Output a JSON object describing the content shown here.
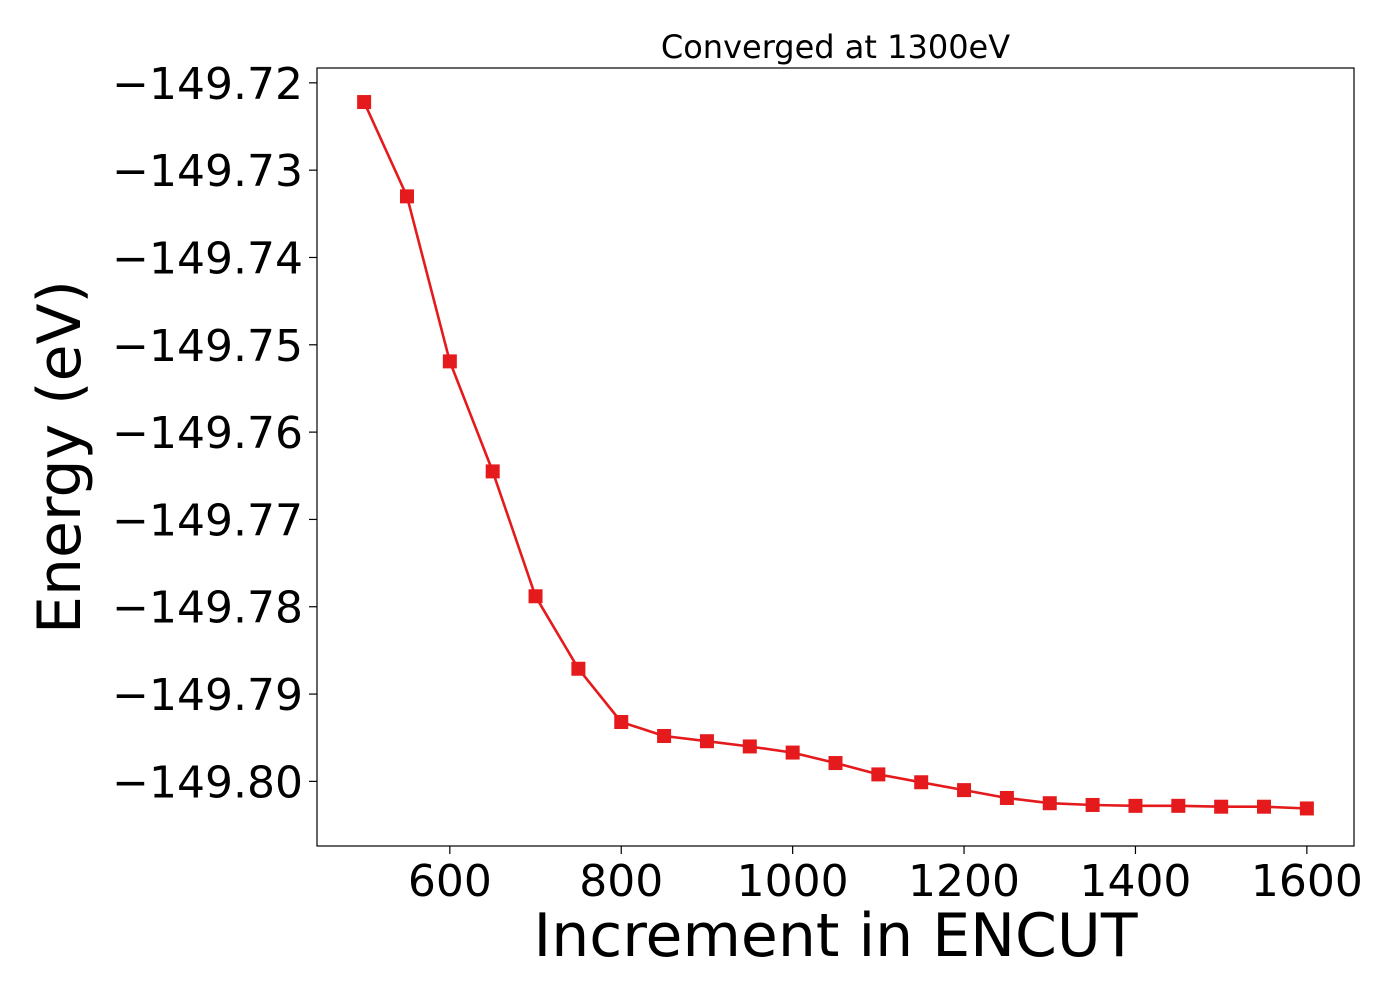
{
  "chart_data": {
    "type": "line",
    "title": "Converged at 1300eV",
    "xlabel": "Increment in ENCUT",
    "ylabel": "Energy (eV)",
    "xlim": [
      445,
      1655
    ],
    "ylim": [
      -149.8074,
      -149.7183
    ],
    "xticks": [
      600,
      800,
      1000,
      1200,
      1400,
      1600
    ],
    "xtick_labels": [
      "600",
      "800",
      "1000",
      "1200",
      "1400",
      "1600"
    ],
    "yticks": [
      -149.72,
      -149.73,
      -149.74,
      -149.75,
      -149.76,
      -149.77,
      -149.78,
      -149.79,
      -149.8
    ],
    "ytick_labels": [
      "−149.72",
      "−149.73",
      "−149.74",
      "−149.75",
      "−149.76",
      "−149.77",
      "−149.78",
      "−149.79",
      "−149.80"
    ],
    "grid": false,
    "series": [
      {
        "color": "#e41a1c",
        "marker": "square",
        "x": [
          500,
          550,
          600,
          650,
          700,
          750,
          800,
          850,
          900,
          950,
          1000,
          1050,
          1100,
          1150,
          1200,
          1250,
          1300,
          1350,
          1400,
          1450,
          1500,
          1550,
          1600
        ],
        "values": [
          -149.7222,
          -149.733,
          -149.7519,
          -149.7645,
          -149.7788,
          -149.7871,
          -149.7932,
          -149.7948,
          -149.7954,
          -149.796,
          -149.7967,
          -149.7979,
          -149.7992,
          -149.8001,
          -149.801,
          -149.8019,
          -149.8025,
          -149.8027,
          -149.8028,
          -149.8028,
          -149.8029,
          -149.8029,
          -149.8031
        ]
      }
    ]
  }
}
